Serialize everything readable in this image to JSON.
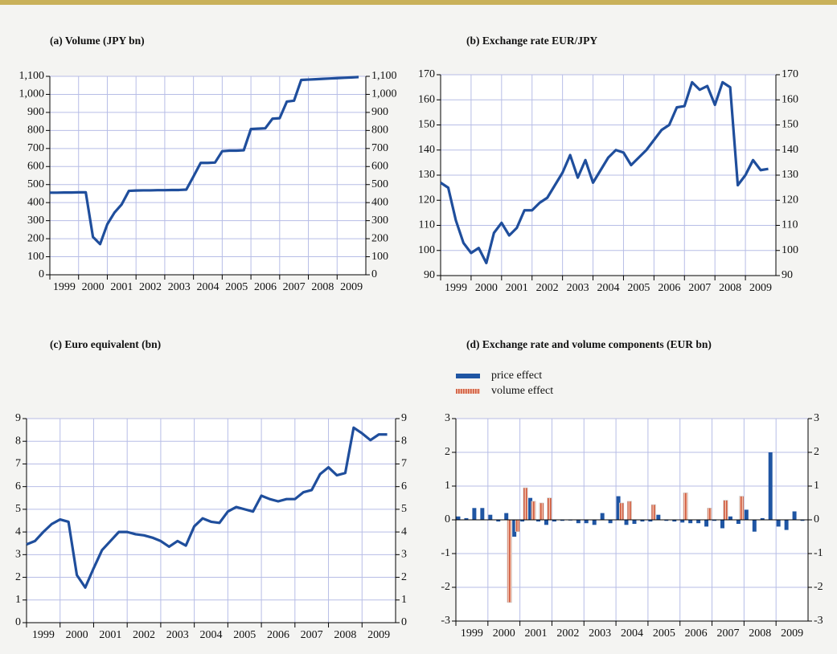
{
  "chart_data": [
    {
      "type": "line",
      "title": "(a) Volume (JPY bn)",
      "color": "#1f4e9c",
      "right_axis": true,
      "grid": true,
      "x": [
        1999,
        1999.25,
        1999.5,
        1999.75,
        2000,
        2000.25,
        2000.5,
        2000.75,
        2001,
        2001.25,
        2001.5,
        2001.75,
        2002,
        2002.25,
        2002.5,
        2002.75,
        2003,
        2003.25,
        2003.5,
        2003.75,
        2004,
        2004.25,
        2004.5,
        2004.75,
        2005,
        2005.25,
        2005.5,
        2005.75,
        2006,
        2006.25,
        2006.5,
        2006.75,
        2007,
        2007.25,
        2007.5,
        2007.75,
        2008,
        2008.25,
        2008.5,
        2008.75,
        2009,
        2009.25,
        2009.5,
        2009.75
      ],
      "values": [
        455,
        455,
        456,
        456,
        457,
        457,
        210,
        170,
        280,
        345,
        390,
        465,
        467,
        468,
        468,
        469,
        469,
        470,
        470,
        472,
        545,
        620,
        620,
        622,
        685,
        688,
        688,
        690,
        808,
        810,
        812,
        865,
        868,
        960,
        965,
        1080,
        1082,
        1084,
        1086,
        1088,
        1090,
        1092,
        1094,
        1096
      ],
      "xlim": [
        1999,
        2010
      ],
      "xticks": [
        1999,
        2000,
        2001,
        2002,
        2003,
        2004,
        2005,
        2006,
        2007,
        2008,
        2009
      ],
      "ylim": [
        0,
        1100
      ],
      "yticks": [
        0,
        100,
        200,
        300,
        400,
        500,
        600,
        700,
        800,
        900,
        {
          "value": 1000,
          "label": "1,000"
        },
        {
          "value": 1100,
          "label": "1,100"
        }
      ]
    },
    {
      "type": "line",
      "title": "(b) Exchange rate EUR/JPY",
      "color": "#1f4e9c",
      "right_axis": true,
      "grid": true,
      "x": [
        1999,
        1999.25,
        1999.5,
        1999.75,
        2000,
        2000.25,
        2000.5,
        2000.75,
        2001,
        2001.25,
        2001.5,
        2001.75,
        2002,
        2002.25,
        2002.5,
        2002.75,
        2003,
        2003.25,
        2003.5,
        2003.75,
        2004,
        2004.25,
        2004.5,
        2004.75,
        2005,
        2005.25,
        2005.5,
        2005.75,
        2006,
        2006.25,
        2006.5,
        2006.75,
        2007,
        2007.25,
        2007.5,
        2007.75,
        2008,
        2008.25,
        2008.5,
        2008.75,
        2009,
        2009.25,
        2009.5,
        2009.75
      ],
      "values": [
        127,
        125,
        112,
        103,
        99,
        101,
        95,
        107,
        111,
        106,
        109,
        116,
        116,
        119,
        121,
        126,
        131,
        138,
        129,
        136,
        127,
        132,
        137,
        140,
        139,
        134,
        137,
        140,
        144,
        148,
        150,
        157,
        157.5,
        167,
        164,
        165.5,
        158,
        167,
        165,
        126,
        130,
        136,
        132,
        132.5
      ],
      "xlim": [
        1999,
        2010
      ],
      "xticks": [
        1999,
        2000,
        2001,
        2002,
        2003,
        2004,
        2005,
        2006,
        2007,
        2008,
        2009
      ],
      "ylim": [
        90,
        170
      ],
      "yticks": [
        90,
        100,
        110,
        120,
        130,
        140,
        150,
        160,
        170
      ]
    },
    {
      "type": "line",
      "title": "(c) Euro equivalent (bn)",
      "color": "#1f4e9c",
      "right_axis": true,
      "grid": true,
      "x": [
        1999,
        1999.25,
        1999.5,
        1999.75,
        2000,
        2000.25,
        2000.5,
        2000.75,
        2001,
        2001.25,
        2001.5,
        2001.75,
        2002,
        2002.25,
        2002.5,
        2002.75,
        2003,
        2003.25,
        2003.5,
        2003.75,
        2004,
        2004.25,
        2004.5,
        2004.75,
        2005,
        2005.25,
        2005.5,
        2005.75,
        2006,
        2006.25,
        2006.5,
        2006.75,
        2007,
        2007.25,
        2007.5,
        2007.75,
        2008,
        2008.25,
        2008.5,
        2008.75,
        2009,
        2009.25,
        2009.5,
        2009.75
      ],
      "values": [
        3.45,
        3.6,
        4.0,
        4.35,
        4.55,
        4.45,
        2.1,
        1.55,
        2.4,
        3.2,
        3.6,
        4.0,
        4.0,
        3.9,
        3.85,
        3.75,
        3.6,
        3.35,
        3.6,
        3.4,
        4.25,
        4.6,
        4.45,
        4.4,
        4.9,
        5.1,
        5.0,
        4.9,
        5.6,
        5.45,
        5.35,
        5.45,
        5.45,
        5.75,
        5.85,
        6.55,
        6.85,
        6.5,
        6.6,
        8.6,
        8.35,
        8.05,
        8.3,
        8.3
      ],
      "xlim": [
        1999,
        2010
      ],
      "xticks": [
        1999,
        2000,
        2001,
        2002,
        2003,
        2004,
        2005,
        2006,
        2007,
        2008,
        2009
      ],
      "ylim": [
        0,
        9
      ],
      "yticks": [
        0,
        1,
        2,
        3,
        4,
        5,
        6,
        7,
        8,
        9
      ]
    },
    {
      "type": "bar",
      "title": "(d) Exchange rate and volume components (EUR bn)",
      "right_axis": true,
      "grid": true,
      "x": [
        1999,
        1999.25,
        1999.5,
        1999.75,
        2000,
        2000.25,
        2000.5,
        2000.75,
        2001,
        2001.25,
        2001.5,
        2001.75,
        2002,
        2002.25,
        2002.5,
        2002.75,
        2003,
        2003.25,
        2003.5,
        2003.75,
        2004,
        2004.25,
        2004.5,
        2004.75,
        2005,
        2005.25,
        2005.5,
        2005.75,
        2006,
        2006.25,
        2006.5,
        2006.75,
        2007,
        2007.25,
        2007.5,
        2007.75,
        2008,
        2008.25,
        2008.5,
        2008.75,
        2009,
        2009.25,
        2009.5,
        2009.75
      ],
      "series": [
        {
          "name": "price effect",
          "color": "#1f55a3",
          "values": [
            0.1,
            0.05,
            0.35,
            0.35,
            0.15,
            -0.05,
            0.2,
            -0.5,
            -0.05,
            0.65,
            -0.05,
            -0.15,
            -0.05,
            -0.03,
            -0.02,
            -0.1,
            -0.1,
            -0.15,
            0.2,
            -0.1,
            0.7,
            -0.15,
            -0.12,
            -0.05,
            -0.05,
            0.15,
            -0.03,
            -0.05,
            -0.08,
            -0.1,
            -0.1,
            -0.2,
            -0.03,
            -0.25,
            0.1,
            -0.12,
            0.3,
            -0.35,
            0.05,
            2.0,
            -0.2,
            -0.3,
            0.25,
            -0.03
          ]
        },
        {
          "name": "volume effect",
          "color": "#cf5a3e",
          "values": [
            0,
            0,
            0,
            0,
            0,
            0,
            -2.45,
            -0.35,
            0.95,
            0.55,
            0.5,
            0.65,
            0,
            0,
            0,
            0,
            0,
            0,
            0,
            0,
            0.5,
            0.55,
            0,
            0,
            0.45,
            0,
            0,
            0,
            0.8,
            0,
            0,
            0.35,
            0,
            0.58,
            0,
            0.7,
            0,
            0,
            0,
            0,
            0,
            0,
            0,
            0
          ]
        }
      ],
      "xlim": [
        1999,
        2010
      ],
      "xticks": [
        1999,
        2000,
        2001,
        2002,
        2003,
        2004,
        2005,
        2006,
        2007,
        2008,
        2009
      ],
      "ylim": [
        -3,
        3
      ],
      "yticks": [
        -3,
        -2,
        -1,
        0,
        1,
        2,
        3
      ]
    }
  ]
}
